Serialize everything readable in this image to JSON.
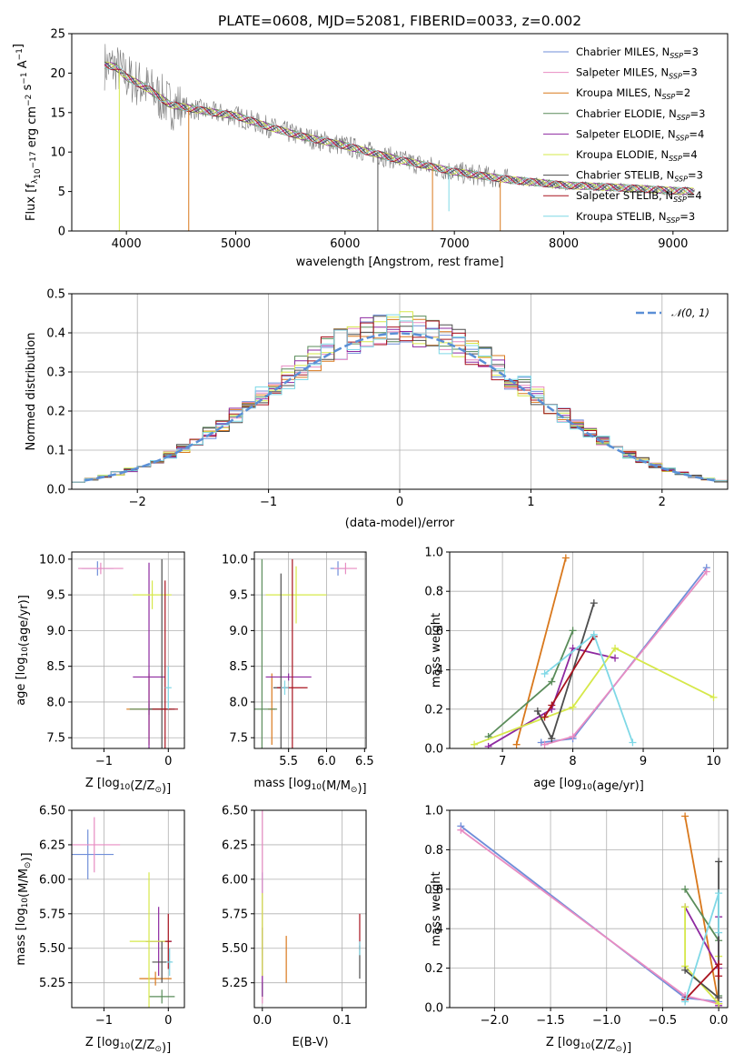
{
  "title": "PLATE=0608, MJD=52081, FIBERID=0033, z=0.002",
  "models": [
    {
      "label": "Chabrier MILES, N",
      "nssp": "3",
      "color": "#6f8ed9"
    },
    {
      "label": "Salpeter MILES, N",
      "nssp": "3",
      "color": "#e88cc2"
    },
    {
      "label": "Kroupa MILES, N",
      "nssp": "2",
      "color": "#d9781c"
    },
    {
      "label": "Chabrier ELODIE, N",
      "nssp": "3",
      "color": "#5a8c5a"
    },
    {
      "label": "Salpeter ELODIE, N",
      "nssp": "4",
      "color": "#8e2aa0"
    },
    {
      "label": "Kroupa ELODIE, N",
      "nssp": "4",
      "color": "#d6e84a"
    },
    {
      "label": "Chabrier STELIB, N",
      "nssp": "3",
      "color": "#4d4d4d"
    },
    {
      "label": "Salpeter STELIB, N",
      "nssp": "4",
      "color": "#a8121e"
    },
    {
      "label": "Kroupa STELIB, N",
      "nssp": "3",
      "color": "#7fd8e6"
    }
  ],
  "ssp_subscript": "SSP",
  "chart_data": [
    {
      "id": "spectrum",
      "type": "line",
      "xlabel": "wavelength [Angstrom, rest frame]",
      "ylabel": "Flux [f",
      "ylabel_parts": [
        "Flux [f",
        "λ",
        "10",
        "−17",
        " erg cm",
        "−2",
        " s",
        "−1",
        " A",
        "−1",
        "]"
      ],
      "xlim": [
        3500,
        9500
      ],
      "ylim": [
        0,
        25
      ],
      "xticks": [
        4000,
        5000,
        6000,
        7000,
        8000,
        9000
      ],
      "yticks": [
        0,
        5,
        10,
        15,
        20,
        25
      ],
      "grid": false,
      "legend": "top-right",
      "continuum": {
        "x": [
          3800,
          3900,
          4000,
          4200,
          4400,
          4600,
          4800,
          5000,
          5300,
          5600,
          6000,
          6500,
          7000,
          7500,
          8000,
          8500,
          9000,
          9200
        ],
        "y": [
          21,
          20.8,
          19.5,
          18,
          16,
          15.5,
          15,
          14.6,
          13.2,
          12,
          10.8,
          9,
          7.5,
          6.5,
          5.8,
          5.5,
          5.1,
          5.0
        ]
      },
      "dips": [
        {
          "x": 3935,
          "y": 0,
          "series": 5
        },
        {
          "x": 4570,
          "y": 0,
          "series": 2
        },
        {
          "x": 6800,
          "y": 0,
          "series": 2
        },
        {
          "x": 7420,
          "y": 0,
          "series": 2
        },
        {
          "x": 6300,
          "y": 0,
          "series": 6
        },
        {
          "x": 6950,
          "y": 2.5,
          "series": 8
        }
      ]
    },
    {
      "id": "residuals",
      "type": "bar",
      "xlabel": "(data-model)/error",
      "ylabel": "Normed distribution",
      "xlim": [
        -2.5,
        2.5
      ],
      "ylim": [
        0,
        0.5
      ],
      "xticks": [
        -2,
        -1,
        0,
        1,
        2
      ],
      "yticks": [
        0.0,
        0.1,
        0.2,
        0.3,
        0.4,
        0.5
      ],
      "grid": true,
      "legend": "top-right",
      "gaussian_label": "𝒩(0, 1)",
      "gaussian_color": "#5a8fd6",
      "bins": 50,
      "bin_range": [
        -2.5,
        2.5
      ]
    },
    {
      "id": "age_vs_Z",
      "type": "scatter",
      "xlabel": "Z [log",
      "xlabel_parts": [
        "Z [log",
        "10",
        "(Z/Z",
        "⊙",
        ")]"
      ],
      "ylabel_parts": [
        "age  [log",
        "10",
        "(age/yr)]"
      ],
      "xlim": [
        -1.5,
        0.25
      ],
      "ylim": [
        7.35,
        10.1
      ],
      "xticks": [
        -1,
        0
      ],
      "yticks": [
        7.5,
        8.0,
        8.5,
        9.0,
        9.5,
        10.0
      ],
      "grid": true,
      "points": [
        {
          "s": 0,
          "x": -1.1,
          "y": 9.87,
          "xe": 0.25,
          "ye": 0.1
        },
        {
          "s": 1,
          "x": -1.05,
          "y": 9.87,
          "xe": 0.35,
          "ye": 0.08
        },
        {
          "s": 2,
          "x": -0.3,
          "y": 7.9,
          "xe": 0.35,
          "ye": 0.5
        },
        {
          "s": 3,
          "x": -0.3,
          "y": 7.9,
          "xe": 0.3,
          "ye": 0.08
        },
        {
          "s": 4,
          "x": -0.3,
          "y": 8.35,
          "xe": 0.25,
          "ye": 1.6
        },
        {
          "s": 5,
          "x": -0.25,
          "y": 9.5,
          "xe": 0.3,
          "ye": 0.2
        },
        {
          "s": 6,
          "x": -0.1,
          "y": 7.9,
          "xe": 0.2,
          "ye": 2.1
        },
        {
          "s": 7,
          "x": -0.05,
          "y": 7.9,
          "xe": 0.2,
          "ye": 1.8
        },
        {
          "s": 8,
          "x": 0.0,
          "y": 8.2,
          "xe": 0.05,
          "ye": 0.3
        }
      ]
    },
    {
      "id": "age_vs_mass",
      "type": "scatter",
      "xlabel_parts": [
        "mass [log",
        "10",
        "(M/M",
        "⊙",
        ")]"
      ],
      "xlim": [
        5.05,
        6.52
      ],
      "ylim": [
        7.35,
        10.1
      ],
      "xticks": [
        5.5,
        6.0,
        6.5
      ],
      "yticks": [
        7.5,
        8.0,
        8.5,
        9.0,
        9.5,
        10.0
      ],
      "grid": true,
      "points": [
        {
          "s": 0,
          "x": 6.15,
          "y": 9.87,
          "xe": 0.1,
          "ye": 0.1
        },
        {
          "s": 1,
          "x": 6.25,
          "y": 9.87,
          "xe": 0.15,
          "ye": 0.08
        },
        {
          "s": 2,
          "x": 5.28,
          "y": 7.9,
          "xe": 0.05,
          "ye": 0.5
        },
        {
          "s": 3,
          "x": 5.15,
          "y": 7.9,
          "xe": 0.2,
          "ye": 2.1
        },
        {
          "s": 4,
          "x": 5.5,
          "y": 8.35,
          "xe": 0.3,
          "ye": 0.05
        },
        {
          "s": 5,
          "x": 5.6,
          "y": 9.5,
          "xe": 0.4,
          "ye": 0.4
        },
        {
          "s": 6,
          "x": 5.4,
          "y": 8.2,
          "xe": 0.1,
          "ye": 1.6
        },
        {
          "s": 7,
          "x": 5.55,
          "y": 8.2,
          "xe": 0.2,
          "ye": 1.8
        },
        {
          "s": 8,
          "x": 5.45,
          "y": 8.2,
          "xe": 0.05,
          "ye": 0.1
        }
      ]
    },
    {
      "id": "weight_vs_age",
      "type": "line",
      "xlabel_parts": [
        "age  [log",
        "10",
        "(age/yr)]"
      ],
      "ylabel": "mass weight",
      "xlim": [
        6.25,
        10.2
      ],
      "ylim": [
        0,
        1.0
      ],
      "xticks": [
        7,
        8,
        9,
        10
      ],
      "yticks": [
        0.0,
        0.2,
        0.4,
        0.6,
        0.8,
        1.0
      ],
      "grid": true,
      "series": [
        {
          "s": 0,
          "x": [
            7.55,
            8.0,
            9.9
          ],
          "y": [
            0.03,
            0.05,
            0.92
          ]
        },
        {
          "s": 1,
          "x": [
            7.6,
            8.0,
            9.9
          ],
          "y": [
            0.02,
            0.06,
            0.9
          ]
        },
        {
          "s": 2,
          "x": [
            7.2,
            7.9
          ],
          "y": [
            0.02,
            0.97
          ]
        },
        {
          "s": 3,
          "x": [
            6.8,
            7.7,
            8.0
          ],
          "y": [
            0.06,
            0.34,
            0.6
          ]
        },
        {
          "s": 4,
          "x": [
            6.8,
            7.7,
            8.0,
            8.6
          ],
          "y": [
            0.01,
            0.2,
            0.51,
            0.46
          ]
        },
        {
          "s": 5,
          "x": [
            6.6,
            8.0,
            8.6,
            10.0
          ],
          "y": [
            0.02,
            0.21,
            0.51,
            0.26
          ]
        },
        {
          "s": 6,
          "x": [
            7.5,
            7.7,
            8.3
          ],
          "y": [
            0.19,
            0.05,
            0.74
          ]
        },
        {
          "s": 7,
          "x": [
            7.6,
            7.7,
            8.3
          ],
          "y": [
            0.16,
            0.22,
            0.57
          ]
        },
        {
          "s": 8,
          "x": [
            7.6,
            8.3,
            8.85
          ],
          "y": [
            0.38,
            0.58,
            0.03
          ]
        }
      ]
    },
    {
      "id": "mass_vs_Z",
      "type": "scatter",
      "xlabel_parts": [
        "Z [log",
        "10",
        "(Z/Z",
        "⊙",
        ")]"
      ],
      "ylabel_parts": [
        "mass [log",
        "10",
        "(M/M",
        "⊙",
        ")]"
      ],
      "xlim": [
        -1.5,
        0.25
      ],
      "ylim": [
        5.07,
        6.5
      ],
      "xticks": [
        -1,
        0
      ],
      "yticks": [
        5.25,
        5.5,
        5.75,
        6.0,
        6.25,
        6.5
      ],
      "grid": true,
      "points": [
        {
          "s": 0,
          "x": -1.25,
          "y": 6.18,
          "xe": 0.4,
          "ye": 0.18
        },
        {
          "s": 1,
          "x": -1.15,
          "y": 6.25,
          "xe": 0.4,
          "ye": 0.2
        },
        {
          "s": 2,
          "x": -0.2,
          "y": 5.28,
          "xe": 0.25,
          "ye": 0.05
        },
        {
          "s": 3,
          "x": -0.1,
          "y": 5.15,
          "xe": 0.2,
          "ye": 0.05
        },
        {
          "s": 4,
          "x": -0.15,
          "y": 5.55,
          "xe": 0.2,
          "ye": 0.25
        },
        {
          "s": 5,
          "x": -0.3,
          "y": 5.55,
          "xe": 0.3,
          "ye": 0.5
        },
        {
          "s": 6,
          "x": -0.1,
          "y": 5.4,
          "xe": 0.15,
          "ye": 0.15
        },
        {
          "s": 7,
          "x": 0.0,
          "y": 5.55,
          "xe": 0.05,
          "ye": 0.2
        },
        {
          "s": 8,
          "x": 0.02,
          "y": 5.4,
          "xe": 0.05,
          "ye": 0.1
        }
      ]
    },
    {
      "id": "mass_vs_ebv",
      "type": "scatter",
      "xlabel": "E(B-V)",
      "xlim": [
        -0.01,
        0.13
      ],
      "ylim": [
        5.07,
        6.5
      ],
      "xticks": [
        0.0,
        0.1
      ],
      "yticks": [
        5.25,
        5.5,
        5.75,
        6.0,
        6.25,
        6.5
      ],
      "grid": true,
      "points": [
        {
          "s": 0,
          "x": 0.0,
          "y": 5.75,
          "xe": 0,
          "ye": 0.3
        },
        {
          "s": 1,
          "x": 0.0,
          "y": 5.8,
          "xe": 0,
          "ye": 0.7
        },
        {
          "s": 2,
          "x": 0.03,
          "y": 5.42,
          "xe": 0,
          "ye": 0.17
        },
        {
          "s": 3,
          "x": 0.0,
          "y": 5.2,
          "xe": 0,
          "ye": 0.05
        },
        {
          "s": 4,
          "x": 0.0,
          "y": 5.4,
          "xe": 0,
          "ye": 0.25
        },
        {
          "s": 5,
          "x": 0.0,
          "y": 5.6,
          "xe": 0,
          "ye": 0.3
        },
        {
          "s": 6,
          "x": 0.122,
          "y": 5.4,
          "xe": 0,
          "ye": 0.12
        },
        {
          "s": 7,
          "x": 0.122,
          "y": 5.62,
          "xe": 0,
          "ye": 0.13
        },
        {
          "s": 8,
          "x": 0.122,
          "y": 5.5,
          "xe": 0,
          "ye": 0.05
        }
      ]
    },
    {
      "id": "weight_vs_Z",
      "type": "line",
      "xlabel_parts": [
        "Z [log",
        "10",
        "(Z/Z",
        "⊙",
        ")]"
      ],
      "ylabel": "mass weight",
      "xlim": [
        -2.4,
        0.08
      ],
      "ylim": [
        0,
        1.0
      ],
      "xticks": [
        -2.0,
        -1.5,
        -1.0,
        -0.5,
        0.0
      ],
      "yticks": [
        0.0,
        0.2,
        0.4,
        0.6,
        0.8,
        1.0
      ],
      "grid": true,
      "series": [
        {
          "s": 0,
          "x": [
            -2.3,
            -0.3,
            0.0
          ],
          "y": [
            0.92,
            0.05,
            0.03
          ]
        },
        {
          "s": 1,
          "x": [
            -2.3,
            -0.3,
            0.0
          ],
          "y": [
            0.9,
            0.06,
            0.02
          ]
        },
        {
          "s": 2,
          "x": [
            -0.3,
            0.0
          ],
          "y": [
            0.97,
            0.02
          ]
        },
        {
          "s": 3,
          "x": [
            -0.3,
            0.0,
            0.0
          ],
          "y": [
            0.6,
            0.34,
            0.06
          ]
        },
        {
          "s": 4,
          "x": [
            -0.3,
            0.0,
            0.0,
            0.0
          ],
          "y": [
            0.51,
            0.2,
            0.46,
            0.01
          ]
        },
        {
          "s": 5,
          "x": [
            -0.3,
            -0.3,
            0.0,
            0.0
          ],
          "y": [
            0.51,
            0.21,
            0.02,
            0.26
          ]
        },
        {
          "s": 6,
          "x": [
            -0.3,
            0.0,
            0.0
          ],
          "y": [
            0.19,
            0.05,
            0.74
          ]
        },
        {
          "s": 7,
          "x": [
            -0.3,
            0.0,
            0.0
          ],
          "y": [
            0.04,
            0.22,
            0.16
          ]
        },
        {
          "s": 8,
          "x": [
            -0.3,
            0.0,
            0.0
          ],
          "y": [
            0.03,
            0.58,
            0.38
          ]
        }
      ]
    }
  ]
}
